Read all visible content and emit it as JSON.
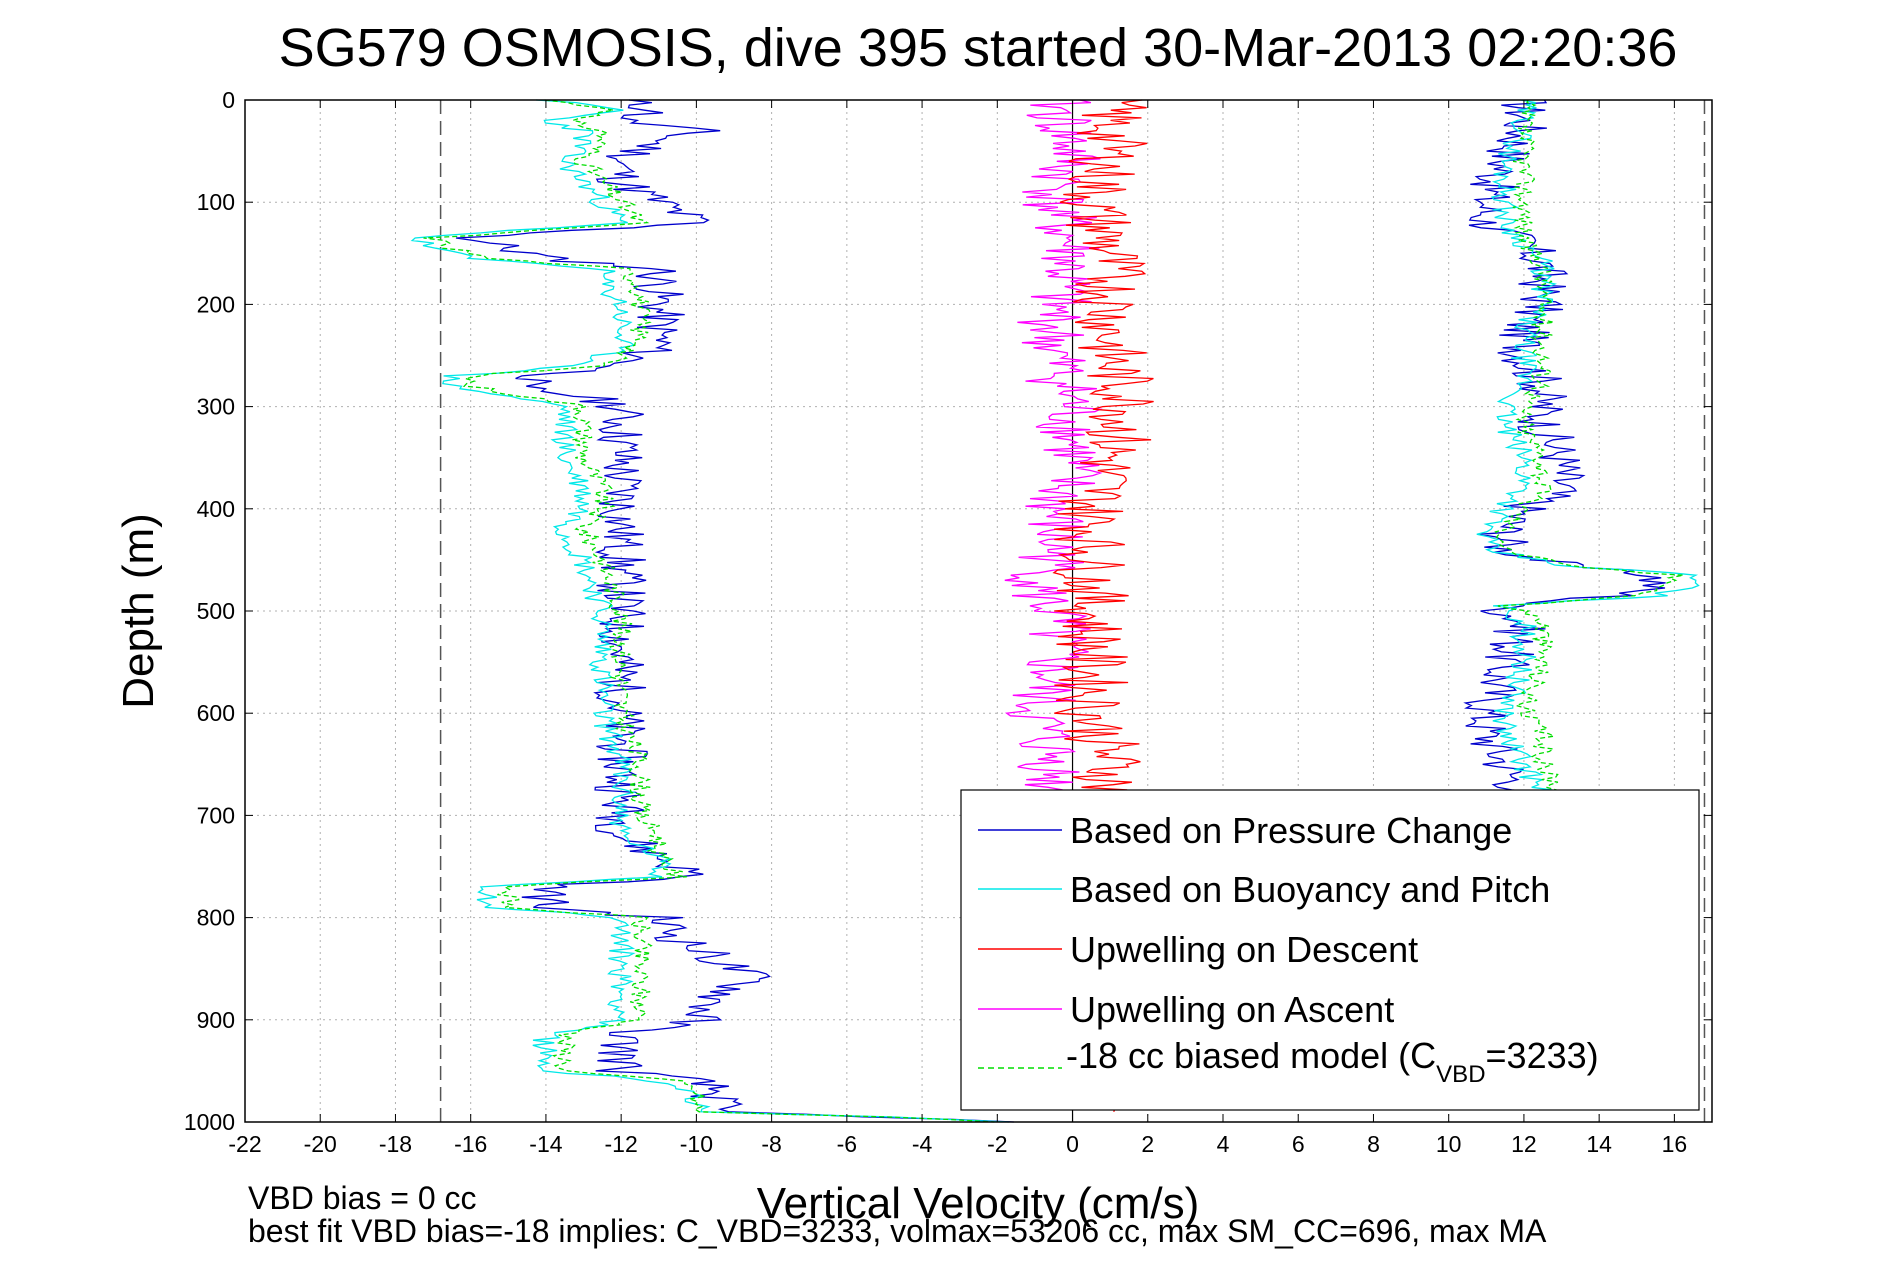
{
  "chart_data": {
    "type": "line",
    "title": "SG579 OSMOSIS, dive 395 started 30-Mar-2013 02:20:36",
    "xlabel": "Vertical Velocity (cm/s)",
    "ylabel": "Depth (m)",
    "xlim": [
      -22,
      17
    ],
    "ylim": [
      1000,
      0
    ],
    "y_inverted": true,
    "grid": true,
    "xticks": [
      -22,
      -20,
      -18,
      -16,
      -14,
      -12,
      -10,
      -8,
      -6,
      -4,
      -2,
      0,
      2,
      4,
      6,
      8,
      10,
      12,
      14,
      16
    ],
    "yticks": [
      0,
      100,
      200,
      300,
      400,
      500,
      600,
      700,
      800,
      900,
      1000
    ],
    "dashed_reference_lines_x": [
      -16.8,
      16.8
    ],
    "legend_position": "lower-right",
    "legend": {
      "pressure": "Based on Pressure Change",
      "buoyancy": "Based on Buoyancy and Pitch",
      "up_descent": "Upwelling on Descent",
      "up_ascent": "Upwelling on Ascent",
      "model_prefix": "-18 cc biased model (C",
      "model_sub": "VBD",
      "model_suffix": "=3233)"
    },
    "colors": {
      "pressure": "#0000cc",
      "buoyancy": "#00e8e8",
      "up_descent": "#ff0000",
      "up_ascent": "#ff00ff",
      "model": "#00dd00"
    },
    "descent_profile": {
      "depth": [
        0,
        10,
        20,
        30,
        40,
        60,
        80,
        100,
        120,
        135,
        145,
        155,
        165,
        180,
        200,
        220,
        240,
        260,
        270,
        280,
        290,
        300,
        320,
        350,
        380,
        400,
        420,
        450,
        500,
        550,
        600,
        650,
        700,
        720,
        740,
        760,
        770,
        780,
        790,
        800,
        820,
        840,
        860,
        880,
        900,
        915,
        930,
        950,
        960,
        970,
        990,
        995,
        1000
      ],
      "pressure_change": [
        -12,
        -11,
        -12,
        -10,
        -11,
        -12,
        -12,
        -11,
        -10,
        -16,
        -15,
        -14,
        -11,
        -11,
        -11,
        -11,
        -11,
        -12,
        -14,
        -15,
        -13,
        -12,
        -12,
        -12,
        -12,
        -12,
        -12,
        -12,
        -12,
        -12,
        -12,
        -12,
        -12,
        -12,
        -11,
        -10,
        -14,
        -14,
        -14,
        -11,
        -10.5,
        -9.5,
        -8.5,
        -9.5,
        -10,
        -12,
        -12,
        -12,
        -10,
        -9.5,
        -9.5,
        -5,
        -2
      ],
      "buoyancy_pitch": [
        -14,
        -12,
        -14,
        -13,
        -13,
        -13.5,
        -13,
        -12.5,
        -12,
        -17.5,
        -17,
        -16,
        -12.5,
        -12.5,
        -12,
        -12,
        -12,
        -13,
        -16.5,
        -16.5,
        -15,
        -13.5,
        -13.5,
        -13.5,
        -13,
        -13,
        -13.5,
        -13,
        -12.5,
        -12.5,
        -12.5,
        -12,
        -12,
        -12,
        -11,
        -11,
        -15.5,
        -15.5,
        -15.5,
        -12,
        -12,
        -12,
        -12,
        -12,
        -12,
        -14,
        -14,
        -14,
        -11,
        -10,
        -10,
        -5,
        -2
      ],
      "model_biased": [
        -14,
        -12,
        -13.5,
        -12.5,
        -12.5,
        -13,
        -12.5,
        -12,
        -11.5,
        -17,
        -16.5,
        -15.5,
        -12,
        -11.5,
        -11.5,
        -11.5,
        -11.5,
        -12.5,
        -16,
        -16,
        -14.5,
        -13,
        -13,
        -13,
        -12.5,
        -12.5,
        -13,
        -12.5,
        -12,
        -12,
        -12,
        -11.5,
        -11.5,
        -11,
        -11,
        -10.5,
        -15,
        -15,
        -15,
        -11.5,
        -11.5,
        -11.5,
        -11.5,
        -11.5,
        -11.5,
        -13.5,
        -13.5,
        -13.5,
        -10.5,
        -10,
        -10,
        -5,
        -2
      ]
    },
    "ascent_profile": {
      "depth": [
        0,
        10,
        30,
        60,
        100,
        120,
        140,
        160,
        180,
        200,
        220,
        250,
        280,
        300,
        320,
        350,
        380,
        400,
        420,
        440,
        455,
        465,
        475,
        485,
        495,
        500,
        510,
        550,
        600,
        620,
        650,
        680
      ],
      "pressure_change": [
        12,
        12,
        12,
        11.5,
        11,
        11,
        12,
        12.5,
        12.5,
        12.5,
        12,
        12,
        12.5,
        12.5,
        12.5,
        13,
        13,
        12,
        11.5,
        11.5,
        13,
        15.5,
        15.5,
        14.5,
        11.5,
        11.5,
        12,
        11.5,
        11,
        11,
        11.5,
        12
      ],
      "buoyancy_pitch": [
        12,
        12,
        12,
        11.5,
        11.5,
        11.5,
        12,
        12.5,
        12.5,
        12.5,
        12,
        12,
        12,
        11.5,
        11.5,
        12,
        12,
        11.5,
        11,
        11,
        13,
        16.5,
        16.5,
        15.5,
        11.5,
        11.5,
        12,
        12,
        11.5,
        11.5,
        12,
        12.5
      ],
      "model_biased": [
        12,
        12,
        12,
        12,
        12,
        12,
        12,
        12.5,
        12.5,
        12.5,
        12.5,
        12.5,
        12.5,
        12,
        12,
        12.5,
        12.5,
        12,
        11.5,
        11.5,
        13,
        16,
        16,
        15,
        11.5,
        12,
        12.5,
        12.5,
        12,
        12.5,
        12.5,
        13
      ]
    },
    "upwelling_descent_mean": {
      "depth": [
        0,
        50,
        100,
        150,
        200,
        250,
        300,
        350,
        400,
        450,
        500,
        550,
        600,
        650,
        700,
        800,
        900,
        990
      ],
      "w": [
        1,
        1,
        0.5,
        1,
        1,
        1,
        1.5,
        1,
        0.5,
        0.5,
        0.5,
        0.5,
        0.5,
        1,
        1,
        1,
        1,
        1
      ]
    },
    "upwelling_ascent_mean": {
      "depth": [
        0,
        50,
        100,
        150,
        200,
        250,
        300,
        350,
        400,
        450,
        480,
        500,
        550,
        600,
        650,
        680
      ],
      "w": [
        -0.5,
        0,
        -0.5,
        0,
        -0.5,
        -0.5,
        0,
        0,
        -0.5,
        -0.5,
        -1,
        -0.5,
        -0.5,
        -1,
        -0.5,
        -0.5
      ]
    }
  },
  "footer": {
    "line1": "VBD bias = 0 cc",
    "line2": "best fit VBD bias=-18 implies: C_VBD=3233, volmax=53206 cc, max SM_CC=696, max MA"
  }
}
